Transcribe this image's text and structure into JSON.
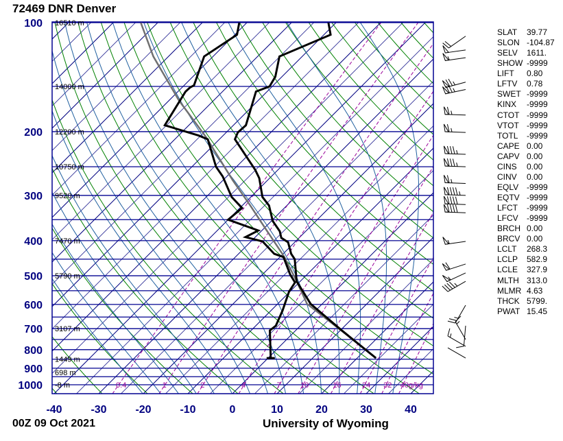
{
  "title": "72469 DNR Denver",
  "footer": {
    "time": "00Z 09 Oct 2021",
    "credit": "University of Wyoming"
  },
  "stats": [
    {
      "k": "SLAT",
      "v": "39.77"
    },
    {
      "k": "SLON",
      "v": "-104.87"
    },
    {
      "k": "SELV",
      "v": "1611."
    },
    {
      "k": "SHOW",
      "v": "-9999"
    },
    {
      "k": "LIFT",
      "v": "0.80"
    },
    {
      "k": "LFTV",
      "v": "0.78"
    },
    {
      "k": "SWET",
      "v": "-9999"
    },
    {
      "k": "KINX",
      "v": "-9999"
    },
    {
      "k": "CTOT",
      "v": "-9999"
    },
    {
      "k": "VTOT",
      "v": "-9999"
    },
    {
      "k": "TOTL",
      "v": "-9999"
    },
    {
      "k": "CAPE",
      "v": "0.00"
    },
    {
      "k": "CAPV",
      "v": "0.00"
    },
    {
      "k": "CINS",
      "v": "0.00"
    },
    {
      "k": "CINV",
      "v": "0.00"
    },
    {
      "k": "EQLV",
      "v": "-9999"
    },
    {
      "k": "EQTV",
      "v": "-9999"
    },
    {
      "k": "LFCT",
      "v": "-9999"
    },
    {
      "k": "LFCV",
      "v": "-9999"
    },
    {
      "k": "BRCH",
      "v": "0.00"
    },
    {
      "k": "BRCV",
      "v": "0.00"
    },
    {
      "k": "LCLT",
      "v": "268.3"
    },
    {
      "k": "LCLP",
      "v": "582.9"
    },
    {
      "k": "LCLE",
      "v": "327.9"
    },
    {
      "k": "MLTH",
      "v": "313.0"
    },
    {
      "k": "MLMR",
      "v": "4.63"
    },
    {
      "k": "THCK",
      "v": "5799."
    },
    {
      "k": "PWAT",
      "v": "15.45"
    }
  ],
  "colors": {
    "isobar": "#000090",
    "isotherm": "#000080",
    "dry_adiabat": "#008000",
    "moist_adiabat": "#1f5f9f",
    "mixing_ratio": "#990099",
    "temperature": "#000000",
    "dewpoint": "#000000",
    "parcel": "#707070",
    "axis_label": "#000080"
  },
  "chart_data": {
    "type": "line",
    "x_axis": {
      "unit": "C",
      "ticks": [
        "-40",
        "-30",
        "-20",
        "-10",
        "0",
        "10",
        "20",
        "30",
        "40"
      ],
      "range": [
        -40.5,
        45
      ]
    },
    "y_axis": {
      "unit": "hPa",
      "scale": "log",
      "ticks": [
        "100",
        "200",
        "300",
        "400",
        "500",
        "600",
        "700",
        "800",
        "900",
        "1000"
      ],
      "range": [
        1058,
        100
      ]
    },
    "isobars": [
      100,
      150,
      200,
      250,
      300,
      350,
      400,
      450,
      500,
      550,
      600,
      650,
      700,
      750,
      800,
      850,
      900,
      950,
      1000
    ],
    "height_labels": [
      {
        "p": 100,
        "label": "16510 m"
      },
      {
        "p": 150,
        "label": "14000 m"
      },
      {
        "p": 200,
        "label": "12200 m"
      },
      {
        "p": 250,
        "label": "10750 m"
      },
      {
        "p": 300,
        "label": "9520 m"
      },
      {
        "p": 400,
        "label": "7470 m"
      },
      {
        "p": 500,
        "label": "5790 m"
      },
      {
        "p": 700,
        "label": "3107 m"
      },
      {
        "p": 850,
        "label": "1449 m"
      },
      {
        "p": 925,
        "label": "698 m"
      },
      {
        "p": 1000,
        "label": "-8 m"
      }
    ],
    "mixing_ratio_lines": [
      {
        "w": 0.4,
        "label": "0.4"
      },
      {
        "w": 1,
        "label": "1"
      },
      {
        "w": 2,
        "label": "2"
      },
      {
        "w": 4,
        "label": "4"
      },
      {
        "w": 7,
        "label": "7"
      },
      {
        "w": 10,
        "label": "10"
      },
      {
        "w": 16,
        "label": "16"
      },
      {
        "w": 24,
        "label": "24"
      },
      {
        "w": 32,
        "label": "32"
      },
      {
        "w": 40,
        "label": "40g/kg"
      }
    ],
    "temperature": [
      [
        844,
        24.2
      ],
      [
        703,
        9.8
      ],
      [
        598,
        -2.6
      ],
      [
        518,
        -10.8
      ],
      [
        450,
        -16.2
      ],
      [
        435,
        -18.2
      ],
      [
        404,
        -21.5
      ],
      [
        393,
        -24.0
      ],
      [
        377,
        -25.8
      ],
      [
        353,
        -29.7
      ],
      [
        320,
        -34.0
      ],
      [
        303,
        -37.4
      ],
      [
        269,
        -42.3
      ],
      [
        255,
        -45.1
      ],
      [
        210,
        -56.5
      ],
      [
        201,
        -57.4
      ],
      [
        192,
        -57.2
      ],
      [
        155,
        -62.5
      ],
      [
        150,
        -60.6
      ],
      [
        141,
        -61.5
      ],
      [
        124,
        -65.1
      ],
      [
        108,
        -58.5
      ],
      [
        100,
        -61.7
      ]
    ],
    "dewpoint": [
      [
        844,
        0.6
      ],
      [
        708,
        -5.8
      ],
      [
        687,
        -5.5
      ],
      [
        624,
        -7.4
      ],
      [
        553,
        -10.2
      ],
      [
        522,
        -10.9
      ],
      [
        496,
        -13.8
      ],
      [
        444,
        -19.2
      ],
      [
        435,
        -22.0
      ],
      [
        402,
        -27.4
      ],
      [
        391,
        -32.2
      ],
      [
        375,
        -30.8
      ],
      [
        350,
        -40.0
      ],
      [
        325,
        -39.5
      ],
      [
        303,
        -44.3
      ],
      [
        266,
        -50.9
      ],
      [
        250,
        -54.6
      ],
      [
        210,
        -62.6
      ],
      [
        205,
        -65.5
      ],
      [
        192,
        -75.4
      ],
      [
        155,
        -78.3
      ],
      [
        151,
        -78.2
      ],
      [
        149,
        -77.8
      ],
      [
        124,
        -82.0
      ],
      [
        108,
        -79.5
      ],
      [
        100,
        -81.7
      ]
    ],
    "parcel": [
      [
        844,
        24.2
      ],
      [
        708,
        10.2
      ],
      [
        598,
        -3.4
      ],
      [
        514,
        -11.2
      ],
      [
        440,
        -19.5
      ],
      [
        370,
        -29.7
      ],
      [
        320,
        -38.2
      ],
      [
        273,
        -47.7
      ],
      [
        207,
        -63.5
      ],
      [
        164,
        -77.8
      ],
      [
        124,
        -93.4
      ],
      [
        100,
        -103.8
      ]
    ],
    "wind_barbs": [
      {
        "p": 109,
        "dir": 235,
        "speed_kt": 20
      },
      {
        "p": 119,
        "dir": 262,
        "speed_kt": 50
      },
      {
        "p": 125,
        "dir": 262,
        "speed_kt": 55
      },
      {
        "p": 146,
        "dir": 255,
        "speed_kt": 75
      },
      {
        "p": 153,
        "dir": 258,
        "speed_kt": 75
      },
      {
        "p": 180,
        "dir": 272,
        "speed_kt": 65
      },
      {
        "p": 201,
        "dir": 272,
        "speed_kt": 65
      },
      {
        "p": 231,
        "dir": 272,
        "speed_kt": 85
      },
      {
        "p": 250,
        "dir": 272,
        "speed_kt": 85
      },
      {
        "p": 278,
        "dir": 272,
        "speed_kt": 65
      },
      {
        "p": 300,
        "dir": 272,
        "speed_kt": 95
      },
      {
        "p": 318,
        "dir": 272,
        "speed_kt": 90
      },
      {
        "p": 335,
        "dir": 272,
        "speed_kt": 90
      },
      {
        "p": 402,
        "dir": 262,
        "speed_kt": 55
      },
      {
        "p": 464,
        "dir": 252,
        "speed_kt": 60
      },
      {
        "p": 491,
        "dir": 245,
        "speed_kt": 55
      },
      {
        "p": 518,
        "dir": 240,
        "speed_kt": 45
      },
      {
        "p": 603,
        "dir": 210,
        "speed_kt": 25
      },
      {
        "p": 687,
        "dir": 185,
        "speed_kt": 10
      },
      {
        "p": 750,
        "dir": 330,
        "speed_kt": 15
      },
      {
        "p": 783,
        "dir": 300,
        "speed_kt": 15
      },
      {
        "p": 844,
        "dir": 300,
        "speed_kt": 0
      }
    ]
  }
}
